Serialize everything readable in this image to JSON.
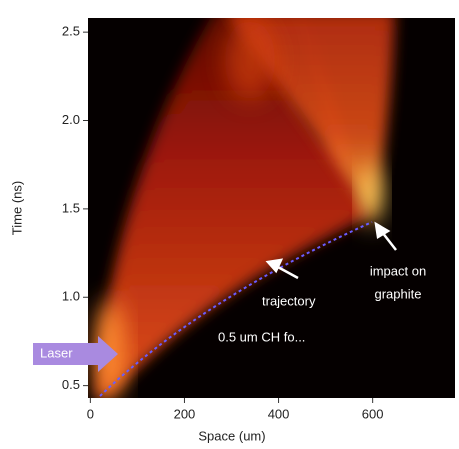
{
  "chart_data": {
    "type": "image",
    "x_label": "Space (um)",
    "y_label": "Time (ns)",
    "xlim": [
      -5,
      775
    ],
    "ylim": [
      0.43,
      2.58
    ],
    "xticks": [
      0,
      200,
      400,
      600
    ],
    "yticks": [
      0.5,
      {
        "value": 1,
        "label": "1.0"
      },
      1.5,
      {
        "value": 2,
        "label": "2.0"
      },
      2.5
    ],
    "annotations": {
      "laser": "Laser",
      "trajectory": "trajectory",
      "foil": "0.5 um CH fo...",
      "impact": [
        "impact on",
        "graphite"
      ]
    }
  }
}
